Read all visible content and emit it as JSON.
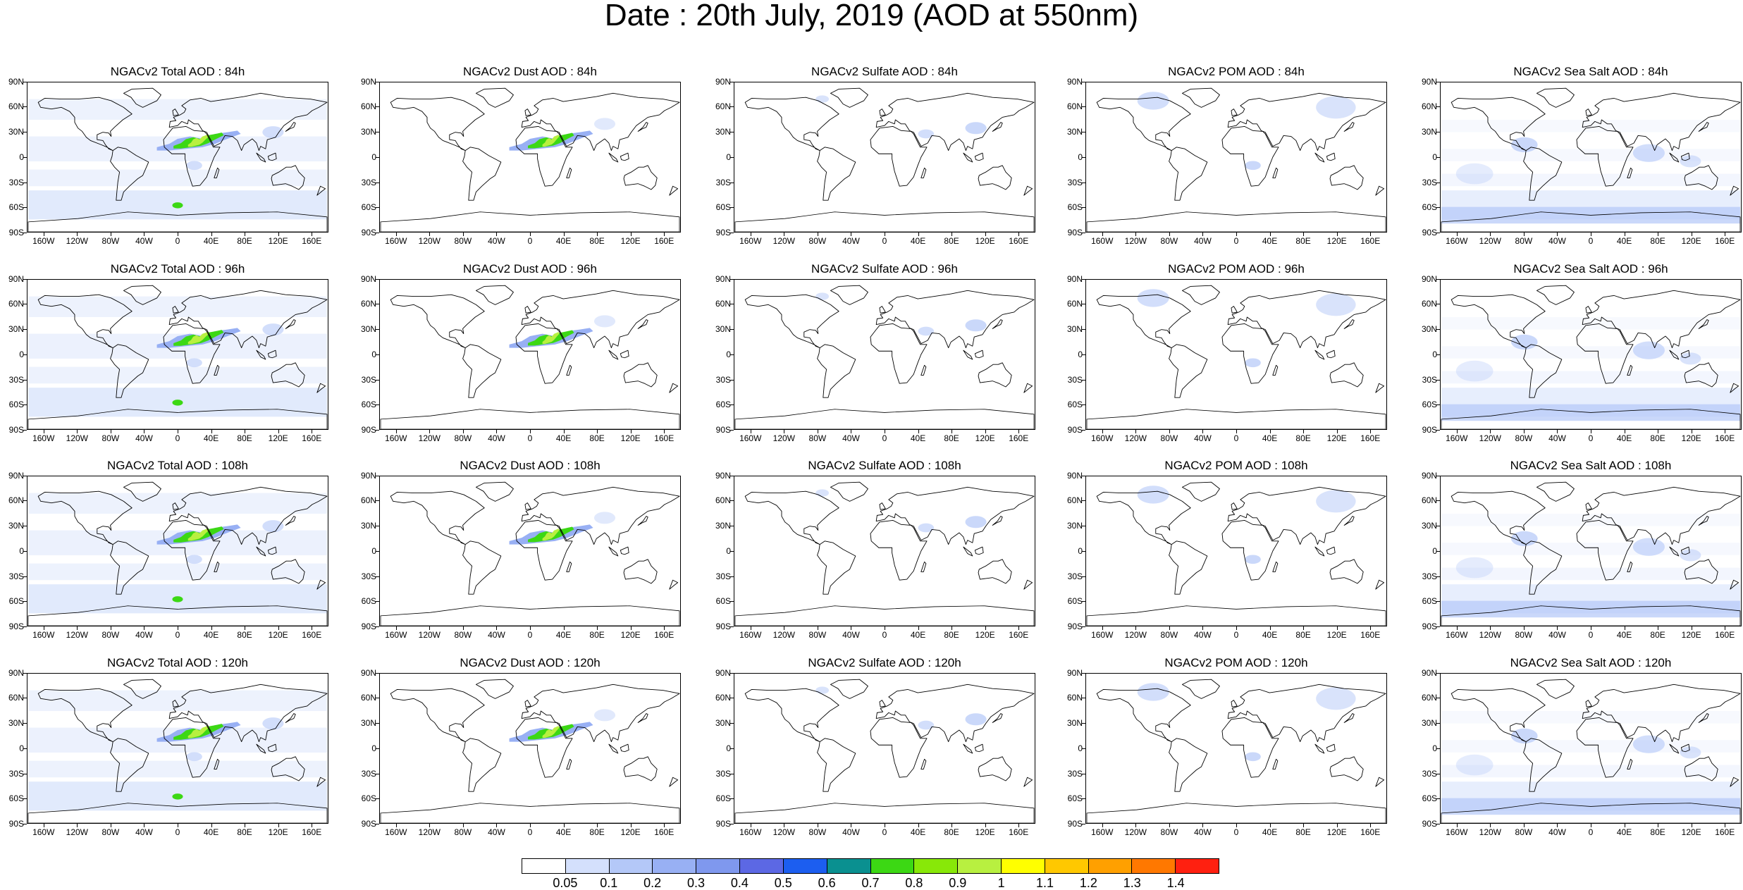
{
  "title": "Date : 20th July, 2019 (AOD at 550nm)",
  "panels": [
    [
      "NGACv2 Total AOD : 84h",
      "NGACv2 Dust AOD : 84h",
      "NGACv2 Sulfate AOD : 84h",
      "NGACv2 POM AOD : 84h",
      "NGACv2 Sea Salt AOD : 84h"
    ],
    [
      "NGACv2 Total AOD : 96h",
      "NGACv2 Dust AOD : 96h",
      "NGACv2 Sulfate AOD : 96h",
      "NGACv2 POM AOD : 96h",
      "NGACv2 Sea Salt AOD : 96h"
    ],
    [
      "NGACv2 Total AOD : 108h",
      "NGACv2 Dust AOD : 108h",
      "NGACv2 Sulfate AOD : 108h",
      "NGACv2 POM AOD : 108h",
      "NGACv2 Sea Salt AOD : 108h"
    ],
    [
      "NGACv2 Total AOD : 120h",
      "NGACv2 Dust AOD : 120h",
      "NGACv2 Sulfate AOD : 120h",
      "NGACv2 POM AOD : 120h",
      "NGACv2 Sea Salt  AOD : 120h"
    ]
  ],
  "lat_labels": [
    "90N",
    "60N",
    "30N",
    "0",
    "30S",
    "60S",
    "90S"
  ],
  "lon_labels": [
    "160W",
    "120W",
    "80W",
    "40W",
    "0",
    "40E",
    "80E",
    "120E",
    "160E"
  ],
  "lon_values": [
    -160,
    -120,
    -80,
    -40,
    0,
    40,
    80,
    120,
    160
  ],
  "colorbar": {
    "labels": [
      "0.05",
      "0.1",
      "0.2",
      "0.3",
      "0.4",
      "0.5",
      "0.6",
      "0.7",
      "0.8",
      "0.9",
      "1",
      "1.1",
      "1.2",
      "1.3",
      "1.4"
    ],
    "colors": [
      "#ffffff",
      "#d4e0fc",
      "#b4c8f8",
      "#98b0f4",
      "#7f98ee",
      "#5c68e4",
      "#1c5ef0",
      "#0a9090",
      "#3cd814",
      "#88e808",
      "#b8f040",
      "#ffff00",
      "#ffc800",
      "#ffa000",
      "#ff7800",
      "#ff2010"
    ]
  },
  "fields": {
    "total": {
      "ocean": "#dce6fc",
      "dust": [
        [
          "#98b0f4",
          1
        ],
        [
          "#3cd814",
          0.6
        ],
        [
          "#b8f040",
          0.25
        ]
      ]
    },
    "dust": {
      "ocean": "none",
      "dust": [
        [
          "#98b0f4",
          1
        ],
        [
          "#3cd814",
          0.55
        ],
        [
          "#b8f040",
          0.2
        ]
      ]
    },
    "sulfate": {
      "ocean": "none",
      "dust": []
    },
    "pom": {
      "ocean": "none",
      "dust": []
    },
    "seasalt": {
      "ocean": "#e4ecfd",
      "dust": []
    }
  }
}
